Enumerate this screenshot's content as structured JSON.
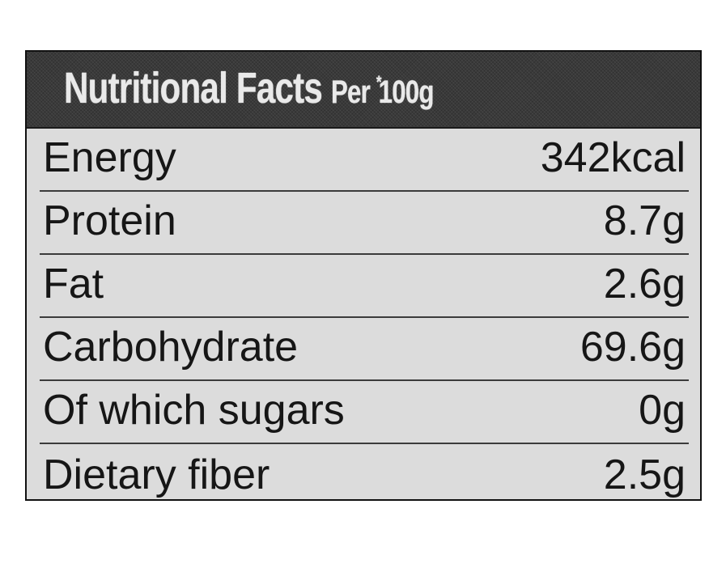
{
  "label": {
    "title": "Nutritional Facts",
    "per_prefix": "Per",
    "per_mark": "*",
    "per_amount": "100g",
    "colors": {
      "header_bg": "#3a3a3a",
      "header_text": "#e9e9e9",
      "body_bg": "#dcdcdc",
      "text": "#161616"
    },
    "rows": [
      {
        "nutrient": "Energy",
        "amount": "342kcal"
      },
      {
        "nutrient": "Protein",
        "amount": "8.7g"
      },
      {
        "nutrient": "Fat",
        "amount": "2.6g"
      },
      {
        "nutrient": "Carbohydrate",
        "amount": "69.6g"
      },
      {
        "nutrient": "Of which sugars",
        "amount": "0g"
      },
      {
        "nutrient": "Dietary fiber",
        "amount": "2.5g"
      }
    ]
  }
}
